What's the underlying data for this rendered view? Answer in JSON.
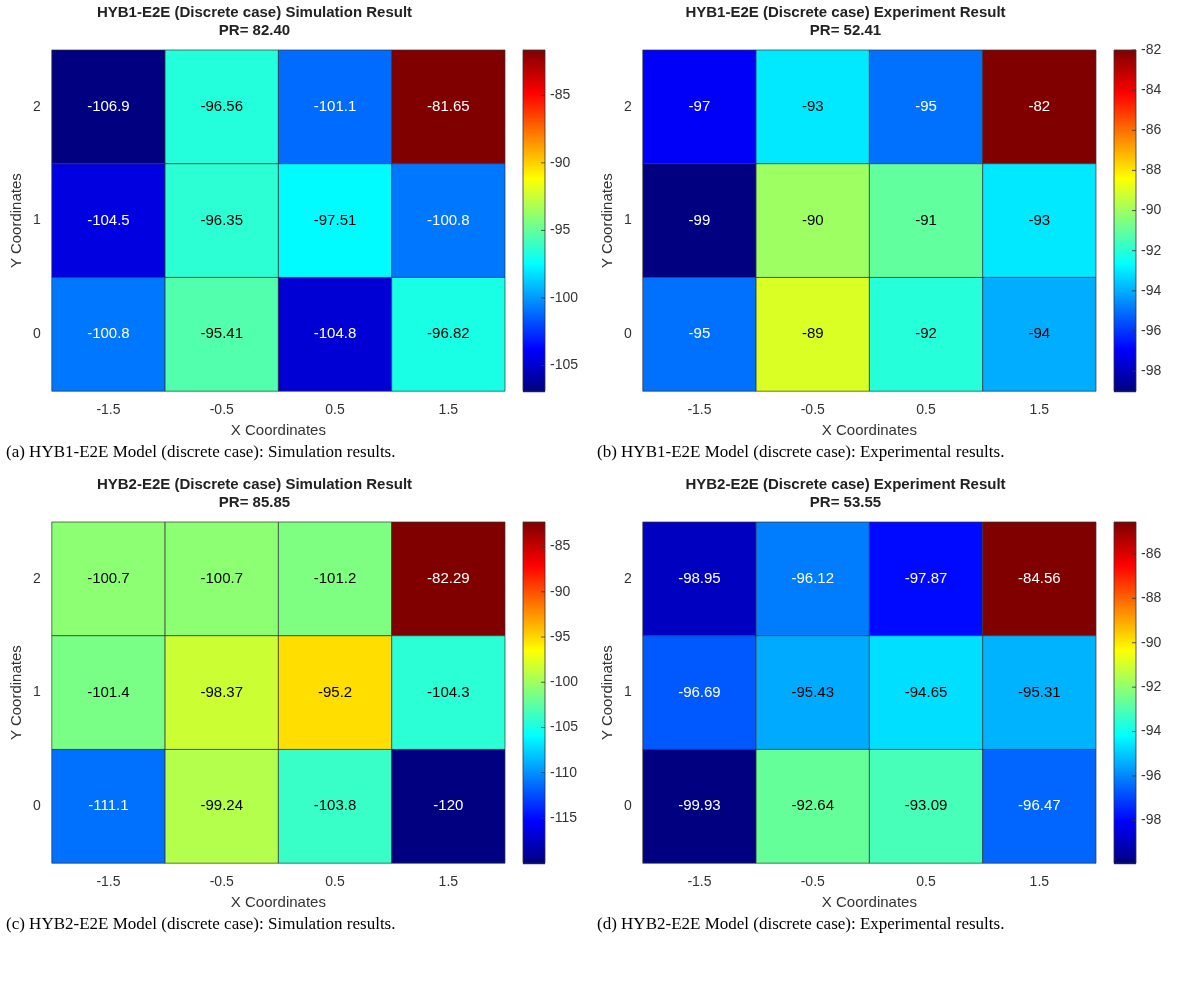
{
  "chart_data": [
    {
      "type": "heatmap",
      "title": "HYB1-E2E (Discrete case) Simulation Result",
      "subtitle": "PR= 82.40",
      "xlabel": "X Coordinates",
      "ylabel": "Y Coordinates",
      "categories": [
        "-1.5",
        "-0.5",
        "0.5",
        "1.5"
      ],
      "y_categories": [
        "2",
        "1",
        "0"
      ],
      "cells": [
        [
          -106.9,
          -96.56,
          -101.1,
          -81.65
        ],
        [
          -104.5,
          -96.35,
          -97.51,
          -100.8
        ],
        [
          -100.8,
          -95.41,
          -104.8,
          -96.82
        ]
      ],
      "data_labels": true,
      "clim": [
        -106.9,
        -81.65
      ],
      "cticks": [
        -105,
        -100,
        -95,
        -90,
        -85
      ],
      "annotations": [
        "(a) HYB1-E2E Model (discrete case): Simulation results."
      ]
    },
    {
      "type": "heatmap",
      "title": "HYB1-E2E (Discrete case) Experiment Result",
      "subtitle": "PR= 52.41",
      "xlabel": "X Coordinates",
      "ylabel": "Y Coordinates",
      "categories": [
        "-1.5",
        "-0.5",
        "0.5",
        "1.5"
      ],
      "y_categories": [
        "2",
        "1",
        "0"
      ],
      "cells": [
        [
          -97,
          -93,
          -95,
          -82
        ],
        [
          -99,
          -90,
          -91,
          -93
        ],
        [
          -95,
          -89,
          -92,
          -94
        ]
      ],
      "data_labels": true,
      "clim": [
        -99,
        -82
      ],
      "cticks": [
        -98,
        -96,
        -94,
        -92,
        -90,
        -88,
        -86,
        -84,
        -82
      ],
      "annotations": [
        "(b) HYB1-E2E Model (discrete case): Experimental results."
      ]
    },
    {
      "type": "heatmap",
      "title": "HYB2-E2E (Discrete case) Simulation Result",
      "subtitle": "PR= 85.85",
      "xlabel": "X Coordinates",
      "ylabel": "Y Coordinates",
      "categories": [
        "-1.5",
        "-0.5",
        "0.5",
        "1.5"
      ],
      "y_categories": [
        "2",
        "1",
        "0"
      ],
      "cells": [
        [
          -100.7,
          -100.7,
          -101.2,
          -82.29
        ],
        [
          -101.4,
          -98.37,
          -95.2,
          -104.3
        ],
        [
          -111.1,
          -99.24,
          -103.8,
          -120
        ]
      ],
      "data_labels": true,
      "clim": [
        -120,
        -82.29
      ],
      "cticks": [
        -115,
        -110,
        -105,
        -100,
        -95,
        -90,
        -85
      ],
      "annotations": [
        "(c) HYB2-E2E Model (discrete case): Simulation results."
      ]
    },
    {
      "type": "heatmap",
      "title": "HYB2-E2E (Discrete case) Experiment Result",
      "subtitle": "PR= 53.55",
      "xlabel": "X Coordinates",
      "ylabel": "Y Coordinates",
      "categories": [
        "-1.5",
        "-0.5",
        "0.5",
        "1.5"
      ],
      "y_categories": [
        "2",
        "1",
        "0"
      ],
      "cells": [
        [
          -98.95,
          -96.12,
          -97.87,
          -84.56
        ],
        [
          -96.69,
          -95.43,
          -94.65,
          -95.31
        ],
        [
          -99.93,
          -92.64,
          -93.09,
          -96.47
        ]
      ],
      "data_labels": true,
      "clim": [
        -99.93,
        -84.56
      ],
      "cticks": [
        -98,
        -96,
        -94,
        -92,
        -90,
        -88,
        -86
      ],
      "annotations": [
        "(d) HYB2-E2E Model (discrete case): Experimental results."
      ]
    }
  ]
}
